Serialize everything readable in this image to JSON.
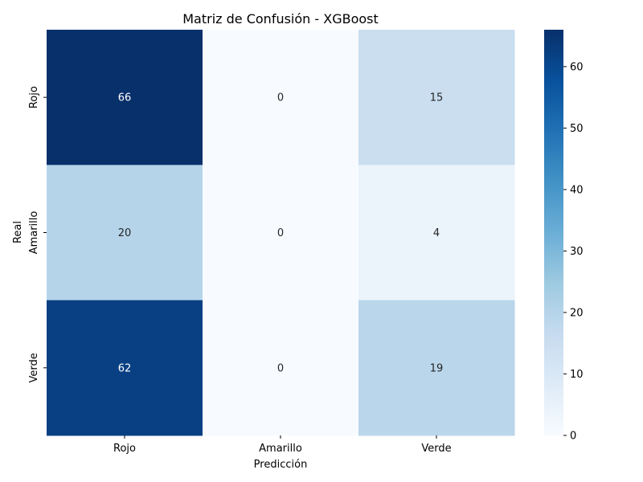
{
  "chart_data": {
    "type": "heatmap",
    "title": "Matriz de Confusión - XGBoost",
    "xlabel": "Predicción",
    "ylabel": "Real",
    "x_categories": [
      "Rojo",
      "Amarillo",
      "Verde"
    ],
    "y_categories": [
      "Rojo",
      "Amarillo",
      "Verde"
    ],
    "values": [
      [
        66,
        0,
        15
      ],
      [
        20,
        0,
        4
      ],
      [
        62,
        0,
        19
      ]
    ],
    "colormap": "Blues",
    "colorbar": {
      "range": [
        0,
        66
      ],
      "ticks": [
        0,
        10,
        20,
        30,
        40,
        50,
        60
      ]
    }
  }
}
